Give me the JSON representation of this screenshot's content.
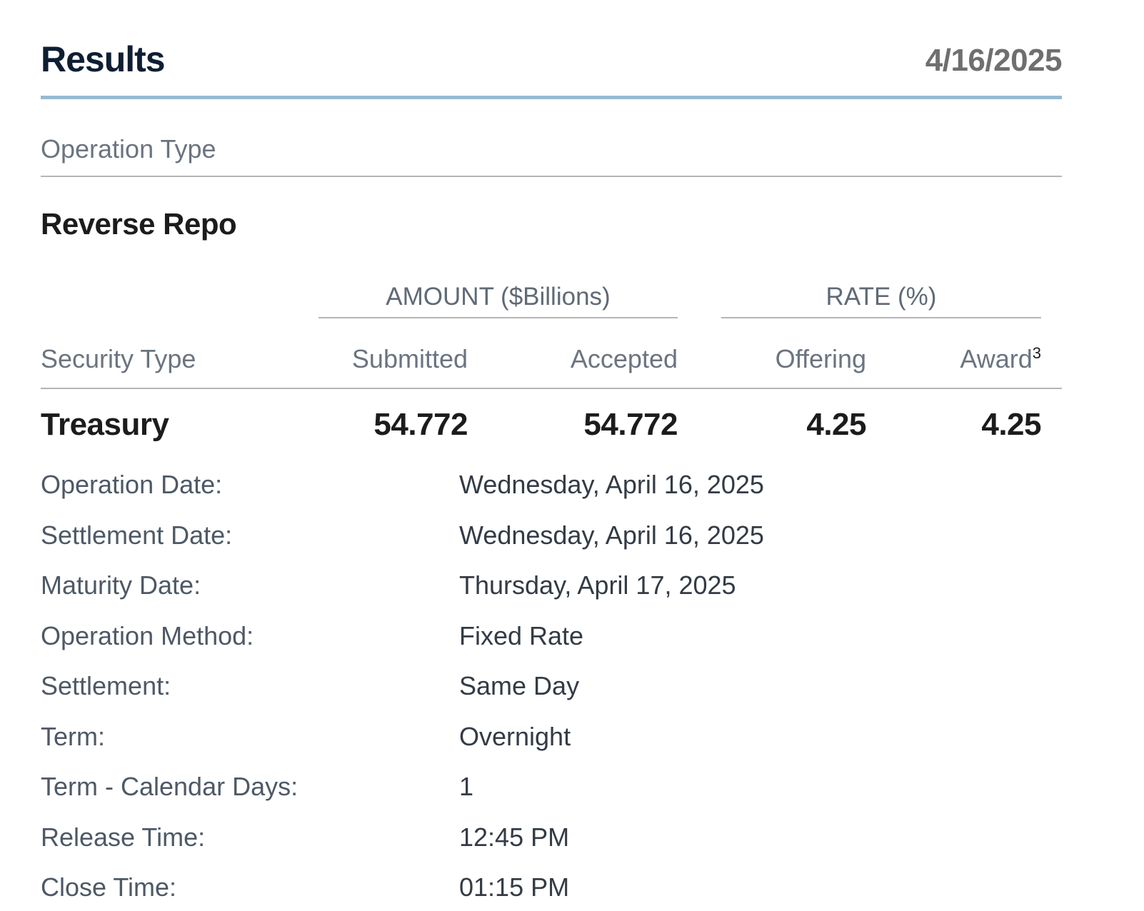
{
  "header": {
    "title": "Results",
    "date": "4/16/2025"
  },
  "operation_type": {
    "label": "Operation Type",
    "value": "Reverse Repo"
  },
  "table": {
    "groups": {
      "amount": "AMOUNT ($Billions)",
      "rate": "RATE (%)"
    },
    "columns": {
      "security_type": "Security Type",
      "submitted": "Submitted",
      "accepted": "Accepted",
      "offering": "Offering",
      "award": "Award",
      "award_footnote": "3"
    },
    "rows": [
      {
        "security_type": "Treasury",
        "submitted": "54.772",
        "accepted": "54.772",
        "offering": "4.25",
        "award": "4.25"
      }
    ]
  },
  "details": [
    {
      "label": "Operation Date:",
      "value": "Wednesday, April 16, 2025"
    },
    {
      "label": "Settlement Date:",
      "value": "Wednesday, April 16, 2025"
    },
    {
      "label": "Maturity Date:",
      "value": "Thursday, April 17, 2025"
    },
    {
      "label": "Operation Method:",
      "value": "Fixed Rate"
    },
    {
      "label": "Settlement:",
      "value": "Same Day"
    },
    {
      "label": "Term:",
      "value": "Overnight"
    },
    {
      "label": "Term - Calendar Days:",
      "value": "1"
    },
    {
      "label": "Release Time:",
      "value": "12:45 PM"
    },
    {
      "label": "Close Time:",
      "value": "01:15 PM"
    }
  ]
}
